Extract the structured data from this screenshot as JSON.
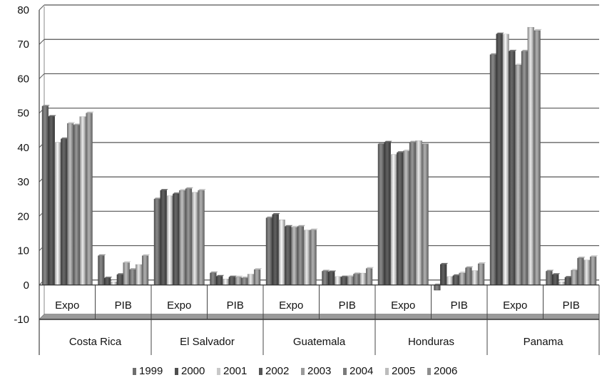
{
  "chart_data": {
    "type": "bar",
    "title": "",
    "xlabel": "",
    "ylabel": "",
    "ylim": [
      -10,
      80
    ],
    "yticks": [
      -10,
      0,
      10,
      20,
      30,
      40,
      50,
      60,
      70,
      80
    ],
    "grid": true,
    "legend_position": "bottom",
    "groups": [
      "Costa Rica",
      "El Salvador",
      "Guatemala",
      "Honduras",
      "Panama"
    ],
    "sub_categories": [
      "Expo",
      "PIB"
    ],
    "categories": [
      "Costa Rica Expo",
      "Costa Rica PIB",
      "El Salvador Expo",
      "El Salvador PIB",
      "Guatemala Expo",
      "Guatemala PIB",
      "Honduras Expo",
      "Honduras PIB",
      "Panama Expo",
      "Panama PIB"
    ],
    "series": [
      {
        "name": "1999",
        "color": "#6e6e6e",
        "values": [
          52,
          8.5,
          25,
          3.5,
          19.5,
          4,
          41,
          -1.5,
          67,
          4
        ]
      },
      {
        "name": "2000",
        "color": "#4e4e4e",
        "values": [
          49,
          2,
          27.5,
          2.5,
          20.5,
          3.8,
          41.5,
          6,
          73,
          3
        ]
      },
      {
        "name": "2001",
        "color": "#c8c8c8",
        "values": [
          41.5,
          1,
          26,
          1.8,
          19,
          2.5,
          38,
          2.5,
          73,
          1
        ]
      },
      {
        "name": "2002",
        "color": "#555555",
        "values": [
          42.5,
          3,
          26.5,
          2.3,
          17,
          2.3,
          38.5,
          2.7,
          68,
          2.2
        ]
      },
      {
        "name": "2003",
        "color": "#9a9a9a",
        "values": [
          47,
          6.5,
          27.5,
          2.3,
          16.8,
          2.5,
          39,
          3.5,
          64,
          4.3
        ]
      },
      {
        "name": "2004",
        "color": "#7a7a7a",
        "values": [
          46.5,
          4.5,
          28,
          2,
          17,
          3.2,
          41.5,
          5,
          68,
          7.8
        ]
      },
      {
        "name": "2005",
        "color": "#bcbcbc",
        "values": [
          49,
          6,
          27,
          3.2,
          16,
          3.5,
          42,
          4.2,
          75,
          7.3
        ]
      },
      {
        "name": "2006",
        "color": "#8e8e8e",
        "values": [
          50,
          8.5,
          27.5,
          4.5,
          16,
          4.8,
          41,
          6.2,
          74,
          8.2
        ]
      }
    ]
  }
}
